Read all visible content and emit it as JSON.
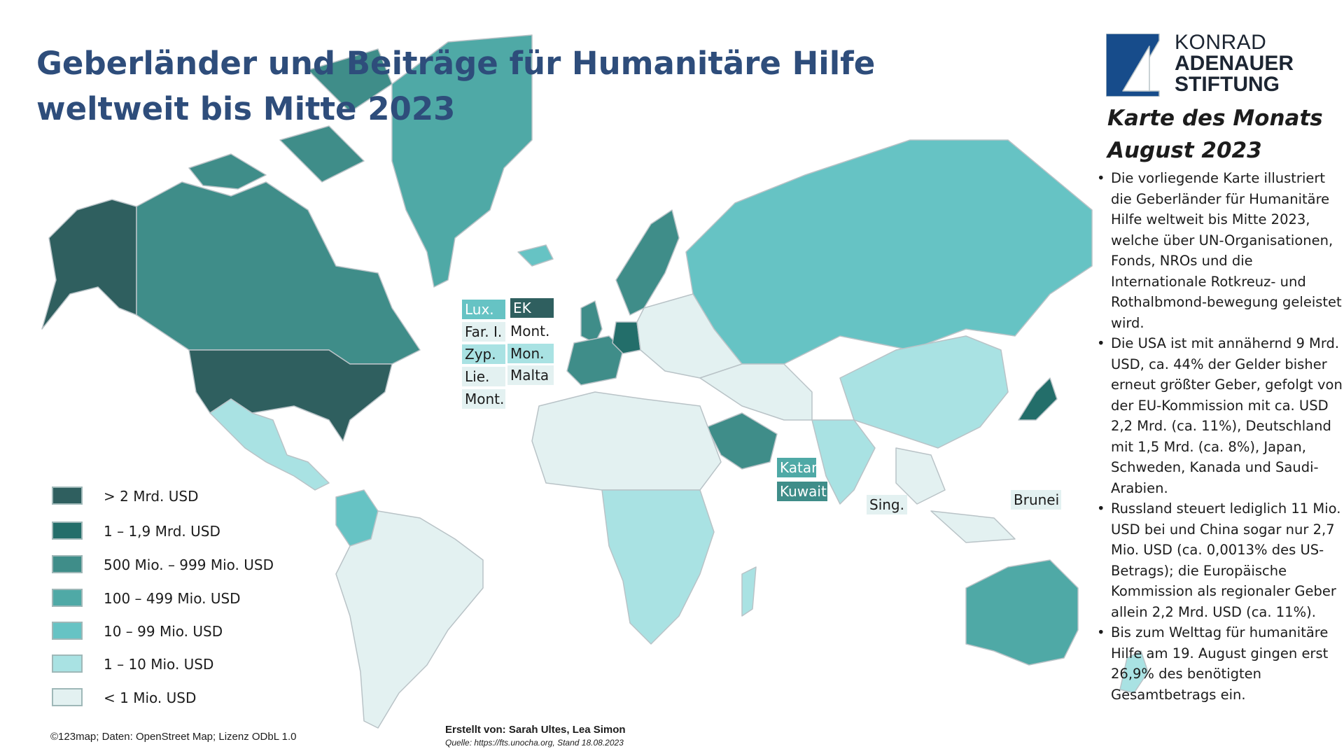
{
  "title": {
    "line1": "Geberländer und Beiträge für Humanitäre Hilfe",
    "line2": "weltweit bis Mitte 2023"
  },
  "logo": {
    "line1": "KONRAD",
    "line2": "ADENAUER",
    "line3": "STIFTUNG",
    "icon": "kas-logo-icon",
    "color": "#174c8b"
  },
  "series": {
    "line1": "Karte des Monats",
    "line2": "August 2023"
  },
  "bullets": [
    "Die vorliegende Karte illustriert die Geberländer für Humanitäre Hilfe weltweit bis Mitte 2023, welche über UN-Organisationen, Fonds, NROs und die Internationale Rotkreuz- und Rothalbmond-bewegung geleistet wird.",
    "Die USA ist mit annähernd 9 Mrd. USD, ca. 44% der Gelder bisher erneut größter Geber, gefolgt von der EU-Kommission mit ca. USD 2,2 Mrd. (ca. 11%), Deutschland mit 1,5 Mrd. (ca. 8%), Japan, Schweden, Kanada und Saudi-Arabien.",
    "Russland steuert lediglich 11 Mio. USD bei und China sogar nur 2,7 Mio. USD (ca. 0,0013% des US-Betrags); die Europäische Kommission als regionaler Geber allein 2,2 Mrd. USD (ca. 11%).",
    "Bis zum Welttag für humanitäre Hilfe am 19. August gingen erst 26,9% des benötigten Gesamtbetrags ein."
  ],
  "legend": [
    {
      "label": "> 2 Mrd. USD",
      "color": "#2f5f5f"
    },
    {
      "label": "1 – 1,9 Mrd. USD",
      "color": "#236e6a"
    },
    {
      "label": "500 Mio. – 999 Mio. USD",
      "color": "#3f8d89"
    },
    {
      "label": "100 – 499 Mio. USD",
      "color": "#4fa9a6"
    },
    {
      "label": "10 – 99 Mio. USD",
      "color": "#66c3c4"
    },
    {
      "label": "1 – 10 Mio. USD",
      "color": "#a9e2e3"
    },
    {
      "label": "< 1 Mio. USD",
      "color": "#e3f1f1"
    }
  ],
  "small_states": [
    {
      "label": "Lux.",
      "color": "#66c3c4",
      "text_color": "#ffffff"
    },
    {
      "label": "EK",
      "color": "#2f5f5f",
      "text_color": "#ffffff"
    },
    {
      "label": "Far. I.",
      "color": "#e3f1f1",
      "text_color": "#1c1c1c"
    },
    {
      "label": "Mont.",
      "color": "#ffffff",
      "text_color": "#1c1c1c"
    },
    {
      "label": "Zyp.",
      "color": "#a9e2e3",
      "text_color": "#1c1c1c"
    },
    {
      "label": "Mon.",
      "color": "#a9e2e3",
      "text_color": "#1c1c1c"
    },
    {
      "label": "Lie.",
      "color": "#e3f1f1",
      "text_color": "#1c1c1c"
    },
    {
      "label": "Malta",
      "color": "#e3f1f1",
      "text_color": "#1c1c1c"
    },
    {
      "label": "Mont.",
      "color": "#e3f1f1",
      "text_color": "#1c1c1c"
    },
    {
      "label": "Katar",
      "color": "#4fa9a6",
      "text_color": "#ffffff"
    },
    {
      "label": "Kuwait",
      "color": "#3f8d89",
      "text_color": "#ffffff"
    },
    {
      "label": "Sing.",
      "color": "#e3f1f1",
      "text_color": "#1c1c1c"
    },
    {
      "label": "Brunei",
      "color": "#e3f1f1",
      "text_color": "#1c1c1c"
    }
  ],
  "regions": [
    {
      "name": "usa",
      "color": "#2f5f5f"
    },
    {
      "name": "alaska",
      "color": "#2f5f5f"
    },
    {
      "name": "canada",
      "color": "#3f8d89"
    },
    {
      "name": "greenland",
      "color": "#4fa9a6"
    },
    {
      "name": "mexico",
      "color": "#a9e2e3"
    },
    {
      "name": "colombia",
      "color": "#66c3c4"
    },
    {
      "name": "brazil",
      "color": "#e3f1f1"
    },
    {
      "name": "uk",
      "color": "#3f8d89"
    },
    {
      "name": "scandinavia",
      "color": "#3f8d89"
    },
    {
      "name": "germany",
      "color": "#236e6a"
    },
    {
      "name": "russia",
      "color": "#66c3c4"
    },
    {
      "name": "china",
      "color": "#a9e2e3"
    },
    {
      "name": "saudi-arabia",
      "color": "#3f8d89"
    },
    {
      "name": "japan",
      "color": "#236e6a"
    },
    {
      "name": "australia",
      "color": "#4fa9a6"
    },
    {
      "name": "africa-central",
      "color": "#a9e2e3"
    },
    {
      "name": "india",
      "color": "#a9e2e3"
    }
  ],
  "credits": {
    "map": "©123map; Daten: OpenStreet Map; Lizenz ODbL 1.0",
    "author": "Erstellt von: Sarah Ultes, Lea Simon",
    "source": "Quelle: https://fts.unocha.org, Stand 18.08.2023"
  }
}
